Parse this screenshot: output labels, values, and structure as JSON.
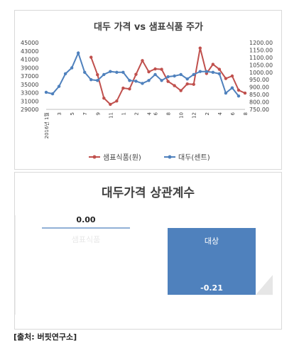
{
  "top_chart": {
    "title": "대두 가격 vs 샘표식품 주가",
    "left_axis_ticks": [
      "45000",
      "43000",
      "41000",
      "39000",
      "37000",
      "35000",
      "33000",
      "31000",
      "29000"
    ],
    "right_axis_ticks": [
      "1200.00",
      "1150.00",
      "1100.00",
      "1050.00",
      "1000.00",
      "950.00",
      "900.00",
      "850.00",
      "800.00",
      "750.00"
    ],
    "x_ticks": [
      "2016년 1월",
      "3월",
      "5월",
      "7월",
      "9월",
      "11월",
      "2017년 1월",
      "3월",
      "5월",
      "7월",
      "9월",
      "11월",
      "2018년 1월",
      "3월",
      "5월",
      "7월",
      "9월",
      "11월",
      "2019년 1월",
      "3월",
      "5월",
      "7월"
    ],
    "x_tick_display": [
      "2016년 1월",
      "3",
      "5",
      "7",
      "9",
      "11",
      "1",
      "2",
      "4",
      "6",
      "8",
      "10",
      "12",
      "2",
      "4",
      "6",
      "8"
    ],
    "legend": [
      "샘표식품(원)",
      "대두(센트)"
    ]
  },
  "chart_data": [
    {
      "type": "line",
      "title": "대두 가격 vs 샘표식품 주가",
      "x": [
        "2016-01",
        "2016-02",
        "2016-03",
        "2016-04",
        "2016-05",
        "2016-06",
        "2016-07",
        "2016-08",
        "2016-09",
        "2016-10",
        "2016-11",
        "2016-12",
        "2017-01",
        "2017-02",
        "2017-03",
        "2017-04",
        "2017-05",
        "2017-06",
        "2017-07",
        "2017-08",
        "2017-09",
        "2017-10",
        "2017-11",
        "2017-12",
        "2018-01",
        "2018-02",
        "2018-03",
        "2018-04",
        "2018-05",
        "2018-06",
        "2018-07",
        "2018-08"
      ],
      "series": [
        {
          "name": "샘표식품(원)",
          "axis": "left",
          "color": "#c0504d",
          "values": [
            null,
            null,
            null,
            null,
            null,
            null,
            null,
            41500,
            37300,
            31700,
            30200,
            31000,
            34100,
            33900,
            37400,
            40700,
            38000,
            38700,
            38600,
            35700,
            34700,
            33500,
            35100,
            35000,
            43700,
            37600,
            39800,
            38600,
            36400,
            37000,
            33600,
            32900
          ]
        },
        {
          "name": "대두(센트)",
          "axis": "right",
          "color": "#4f81bd",
          "values": [
            865,
            855,
            905,
            990,
            1030,
            1130,
            1000,
            950,
            945,
            985,
            1005,
            1000,
            1000,
            945,
            940,
            925,
            945,
            985,
            945,
            970,
            975,
            985,
            955,
            985,
            1005,
            1005,
            1000,
            990,
            860,
            895,
            840,
            null
          ]
        }
      ],
      "ylim_left": [
        29000,
        45000
      ],
      "ylim_right": [
        750,
        1200
      ],
      "legend_position": "bottom"
    },
    {
      "type": "bar",
      "title": "대두가격 상관계수",
      "categories": [
        "샘표식품",
        "대상"
      ],
      "values": [
        0.0,
        -0.21
      ],
      "value_labels": [
        "0.00",
        "-0.21"
      ],
      "color": "#4f81bd"
    }
  ],
  "bottom_chart": {
    "title": "대두가격 상관계수",
    "cat1": "샘표식품",
    "cat2": "대상",
    "val1": "0.00",
    "val2": "-0.21"
  },
  "source": "[출처: 버핏연구소]"
}
